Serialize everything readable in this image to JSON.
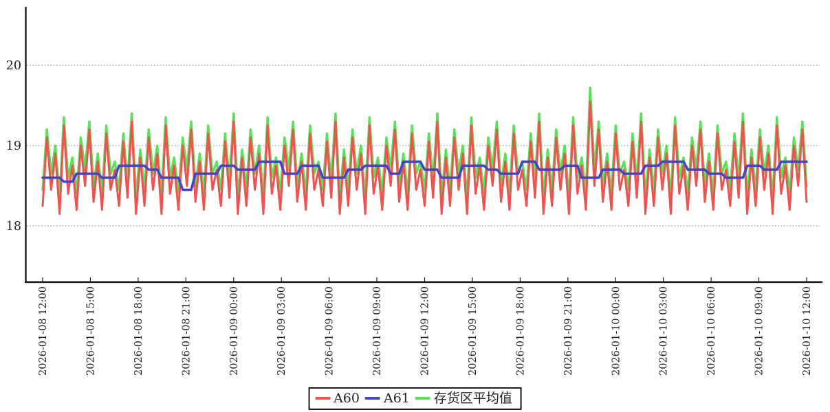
{
  "chart": {
    "background": "#ffffff",
    "axis_color": "#1a1a1a",
    "gridline_color": "#777777",
    "label_color": "#222222",
    "legend": {
      "items": [
        {
          "label": "A60",
          "color": "#ef5350"
        },
        {
          "label": "A61",
          "color": "#4545c8"
        },
        {
          "label": "存货区平均值",
          "color": "#5ce05c"
        }
      ]
    }
  },
  "chart_data": {
    "type": "line",
    "title": "",
    "xlabel": "",
    "ylabel": "",
    "legend_position": "bottom-center",
    "grid": "horizontal-dotted",
    "y_gridlines": [
      18,
      19,
      20
    ],
    "ylim": [
      17.3,
      20.73
    ],
    "x_start": "2026-01-08 12:00",
    "x_end": "2026-01-10 12:00",
    "sample_interval_minutes": 16,
    "x_tick_labels": [
      "2026-01-08 12:00",
      "2026-01-08 15:00",
      "2026-01-08 18:00",
      "2026-01-08 21:00",
      "2026-01-09 00:00",
      "2026-01-09 03:00",
      "2026-01-09 06:00",
      "2026-01-09 09:00",
      "2026-01-09 12:00",
      "2026-01-09 15:00",
      "2026-01-09 18:00",
      "2026-01-09 21:00",
      "2026-01-10 00:00",
      "2026-01-10 03:00",
      "2026-01-10 06:00",
      "2026-01-10 09:00",
      "2026-01-10 12:00"
    ],
    "series": [
      {
        "name": "A60",
        "color": "#ef5350",
        "stroke_width": 3,
        "values": [
          18.25,
          19.1,
          18.45,
          18.9,
          18.15,
          19.25,
          18.4,
          18.75,
          18.2,
          19.0,
          18.5,
          19.2,
          18.3,
          18.8,
          18.2,
          19.15,
          18.45,
          18.7,
          18.25,
          19.05,
          18.35,
          19.3,
          18.15,
          18.85,
          18.25,
          19.1,
          18.45,
          18.9,
          18.15,
          19.25,
          18.4,
          18.75,
          18.2,
          19.0,
          18.5,
          19.2,
          18.3,
          18.8,
          18.2,
          19.15,
          18.45,
          18.7,
          18.25,
          19.05,
          18.35,
          19.3,
          18.15,
          18.85,
          18.25,
          19.1,
          18.45,
          18.9,
          18.15,
          19.25,
          18.4,
          18.75,
          18.2,
          19.0,
          18.5,
          19.2,
          18.3,
          18.8,
          18.2,
          19.15,
          18.45,
          18.7,
          18.25,
          19.05,
          18.35,
          19.3,
          18.15,
          18.85,
          18.25,
          19.1,
          18.45,
          18.9,
          18.15,
          19.25,
          18.4,
          18.75,
          18.2,
          19.0,
          18.5,
          19.2,
          18.3,
          18.8,
          18.2,
          19.15,
          18.45,
          18.7,
          18.25,
          19.05,
          18.35,
          19.3,
          18.15,
          18.85,
          18.25,
          19.1,
          18.45,
          18.9,
          18.15,
          19.25,
          18.4,
          18.75,
          18.2,
          19.0,
          18.5,
          19.2,
          18.3,
          18.8,
          18.2,
          19.15,
          18.45,
          18.7,
          18.25,
          19.05,
          18.35,
          19.3,
          18.15,
          18.85,
          18.25,
          19.1,
          18.45,
          18.9,
          18.15,
          19.25,
          18.4,
          18.75,
          18.2,
          19.55,
          18.5,
          19.2,
          18.3,
          18.8,
          18.2,
          19.15,
          18.45,
          18.7,
          18.25,
          19.05,
          18.35,
          19.3,
          18.15,
          18.85,
          18.25,
          19.1,
          18.45,
          18.9,
          18.15,
          19.25,
          18.4,
          18.75,
          18.2,
          19.0,
          18.5,
          19.2,
          18.3,
          18.8,
          18.2,
          19.15,
          18.45,
          18.7,
          18.25,
          19.05,
          18.35,
          19.3,
          18.15,
          18.85,
          18.25,
          19.1,
          18.45,
          18.9,
          18.15,
          19.25,
          18.4,
          18.75,
          18.2,
          19.0,
          18.5,
          19.2,
          18.3
        ]
      },
      {
        "name": "A61",
        "color": "#4545c8",
        "stroke_width": 3.6,
        "values": [
          18.6,
          18.6,
          18.6,
          18.6,
          18.6,
          18.55,
          18.55,
          18.55,
          18.65,
          18.65,
          18.65,
          18.65,
          18.65,
          18.65,
          18.6,
          18.6,
          18.6,
          18.6,
          18.75,
          18.75,
          18.75,
          18.75,
          18.75,
          18.75,
          18.75,
          18.7,
          18.7,
          18.7,
          18.6,
          18.6,
          18.6,
          18.6,
          18.6,
          18.45,
          18.45,
          18.45,
          18.65,
          18.65,
          18.65,
          18.65,
          18.65,
          18.65,
          18.75,
          18.75,
          18.75,
          18.75,
          18.7,
          18.7,
          18.7,
          18.7,
          18.7,
          18.8,
          18.8,
          18.8,
          18.8,
          18.8,
          18.8,
          18.65,
          18.65,
          18.65,
          18.65,
          18.75,
          18.75,
          18.75,
          18.75,
          18.75,
          18.6,
          18.6,
          18.6,
          18.6,
          18.6,
          18.6,
          18.7,
          18.7,
          18.7,
          18.7,
          18.75,
          18.75,
          18.75,
          18.75,
          18.75,
          18.75,
          18.65,
          18.65,
          18.65,
          18.8,
          18.8,
          18.8,
          18.8,
          18.8,
          18.7,
          18.7,
          18.7,
          18.7,
          18.6,
          18.6,
          18.6,
          18.6,
          18.6,
          18.75,
          18.75,
          18.75,
          18.75,
          18.75,
          18.75,
          18.7,
          18.7,
          18.7,
          18.65,
          18.65,
          18.65,
          18.65,
          18.65,
          18.8,
          18.8,
          18.8,
          18.8,
          18.7,
          18.7,
          18.7,
          18.7,
          18.7,
          18.7,
          18.75,
          18.75,
          18.75,
          18.75,
          18.6,
          18.6,
          18.6,
          18.6,
          18.6,
          18.7,
          18.7,
          18.7,
          18.7,
          18.7,
          18.65,
          18.65,
          18.65,
          18.65,
          18.65,
          18.75,
          18.75,
          18.75,
          18.75,
          18.8,
          18.8,
          18.8,
          18.8,
          18.8,
          18.8,
          18.7,
          18.7,
          18.7,
          18.7,
          18.7,
          18.65,
          18.65,
          18.65,
          18.65,
          18.6,
          18.6,
          18.6,
          18.6,
          18.6,
          18.75,
          18.75,
          18.75,
          18.75,
          18.7,
          18.7,
          18.7,
          18.7,
          18.8,
          18.8,
          18.8,
          18.8,
          18.8,
          18.8,
          18.8
        ]
      },
      {
        "name": "存货区平均值",
        "color": "#5ce05c",
        "stroke_width": 3.4,
        "values": [
          18.45,
          19.2,
          18.65,
          19.0,
          18.35,
          19.35,
          18.6,
          18.85,
          18.4,
          19.1,
          18.7,
          19.3,
          18.5,
          18.9,
          18.4,
          19.25,
          18.65,
          18.8,
          18.45,
          19.15,
          18.55,
          19.4,
          18.35,
          18.95,
          18.45,
          19.2,
          18.65,
          19.0,
          18.35,
          19.35,
          18.6,
          18.85,
          18.4,
          19.1,
          18.7,
          19.3,
          18.5,
          18.9,
          18.4,
          19.25,
          18.65,
          18.8,
          18.45,
          19.15,
          18.55,
          19.4,
          18.35,
          18.95,
          18.45,
          19.2,
          18.65,
          19.0,
          18.35,
          19.35,
          18.6,
          18.85,
          18.4,
          19.1,
          18.7,
          19.3,
          18.5,
          18.9,
          18.4,
          19.25,
          18.65,
          18.8,
          18.45,
          19.15,
          18.55,
          19.4,
          18.35,
          18.95,
          18.45,
          19.2,
          18.65,
          19.0,
          18.35,
          19.35,
          18.6,
          18.85,
          18.4,
          19.1,
          18.7,
          19.3,
          18.5,
          18.9,
          18.4,
          19.25,
          18.65,
          18.8,
          18.45,
          19.15,
          18.55,
          19.4,
          18.35,
          18.95,
          18.45,
          19.2,
          18.65,
          19.0,
          18.35,
          19.35,
          18.6,
          18.85,
          18.4,
          19.1,
          18.7,
          19.3,
          18.5,
          18.9,
          18.4,
          19.25,
          18.65,
          18.8,
          18.45,
          19.15,
          18.55,
          19.4,
          18.35,
          18.95,
          18.45,
          19.2,
          18.65,
          19.0,
          18.35,
          19.35,
          18.6,
          18.85,
          18.4,
          19.72,
          18.7,
          19.3,
          18.5,
          18.9,
          18.4,
          19.25,
          18.65,
          18.8,
          18.45,
          19.15,
          18.55,
          19.4,
          18.35,
          18.95,
          18.45,
          19.2,
          18.65,
          19.0,
          18.35,
          19.35,
          18.6,
          18.85,
          18.4,
          19.1,
          18.7,
          19.3,
          18.5,
          18.9,
          18.4,
          19.25,
          18.65,
          18.8,
          18.45,
          19.15,
          18.55,
          19.4,
          18.35,
          18.95,
          18.45,
          19.2,
          18.65,
          19.0,
          18.35,
          19.35,
          18.6,
          18.85,
          18.4,
          19.1,
          18.7,
          19.3,
          18.5
        ]
      }
    ]
  }
}
